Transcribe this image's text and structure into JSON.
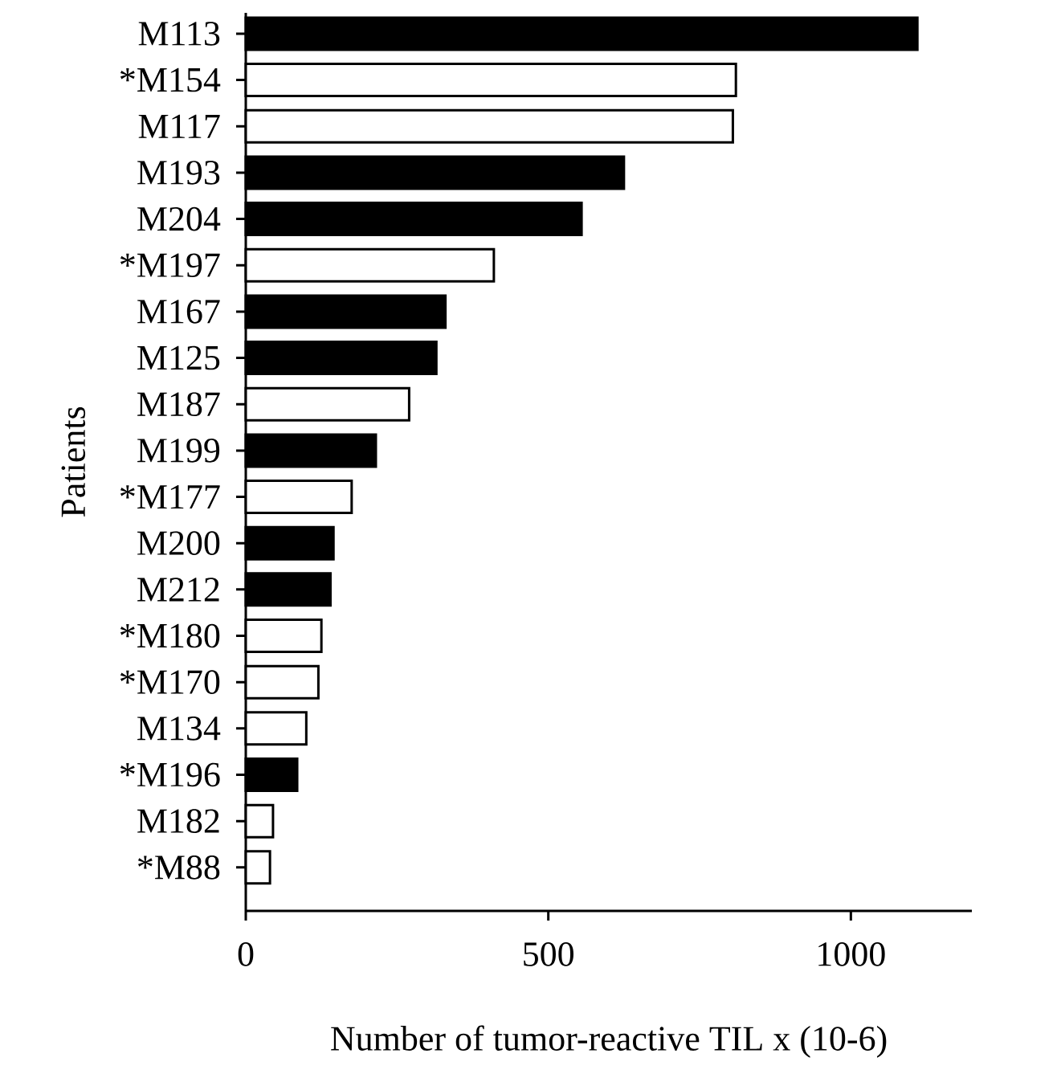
{
  "chart_data": {
    "type": "bar",
    "orientation": "horizontal",
    "xlabel": "Number of tumor-reactive TIL x (10-6)",
    "ylabel": "Patients",
    "categories": [
      "M113",
      "*M154",
      "M117",
      "M193",
      "M204",
      "*M197",
      "M167",
      "M125",
      "M187",
      "M199",
      "*M177",
      "M200",
      "M212",
      "*M180",
      "*M170",
      "M134",
      "*M196",
      "M182",
      "*M88"
    ],
    "series": [
      {
        "color": "#000000",
        "values": [
          1110,
          null,
          null,
          625,
          555,
          null,
          330,
          315,
          null,
          215,
          null,
          145,
          140,
          null,
          null,
          null,
          85,
          null,
          null
        ]
      },
      {
        "color": "#ffffff",
        "values": [
          null,
          810,
          805,
          null,
          null,
          410,
          null,
          null,
          270,
          null,
          175,
          null,
          null,
          125,
          120,
          100,
          null,
          45,
          40
        ]
      }
    ],
    "xlim": [
      0,
      1200
    ],
    "xticks": [
      0,
      500,
      1000
    ]
  }
}
